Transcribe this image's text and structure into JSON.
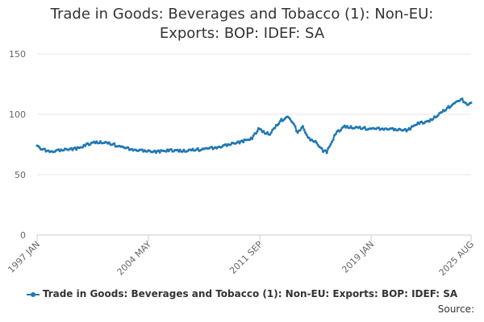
{
  "chart_data": {
    "type": "line",
    "title_lines": [
      "Trade in Goods: Beverages and Tobacco (1): Non-EU:",
      "Exports: BOP: IDEF: SA"
    ],
    "xlabel": "",
    "ylabel": "",
    "ylim": [
      0,
      150
    ],
    "yticks": [
      0,
      50,
      100,
      150
    ],
    "x_ticks": [
      {
        "label": "1997 JAN",
        "index": 0
      },
      {
        "label": "2004 MAY",
        "index": 88
      },
      {
        "label": "2011 SEP",
        "index": 176
      },
      {
        "label": "2019 JAN",
        "index": 264
      },
      {
        "label": "2025 AUG",
        "index": 343
      }
    ],
    "grid": true,
    "legend_position": "bottom",
    "color": "#1f77b4",
    "series": [
      {
        "name": "Trade in Goods: Beverages and Tobacco (1): Non-EU: Exports: BOP: IDEF: SA",
        "x_start": "1997 JAN",
        "x_end": "2025 AUG",
        "frequency": "monthly",
        "anchors": [
          [
            0,
            74
          ],
          [
            3,
            71
          ],
          [
            8,
            70
          ],
          [
            12,
            69
          ],
          [
            18,
            70
          ],
          [
            25,
            71
          ],
          [
            33,
            72
          ],
          [
            40,
            75
          ],
          [
            46,
            77
          ],
          [
            52,
            77
          ],
          [
            60,
            75
          ],
          [
            70,
            72
          ],
          [
            80,
            70
          ],
          [
            92,
            69
          ],
          [
            105,
            70
          ],
          [
            118,
            70
          ],
          [
            130,
            71
          ],
          [
            145,
            73
          ],
          [
            160,
            77
          ],
          [
            170,
            80
          ],
          [
            175,
            88
          ],
          [
            180,
            85
          ],
          [
            184,
            84
          ],
          [
            188,
            89
          ],
          [
            193,
            95
          ],
          [
            198,
            98
          ],
          [
            202,
            93
          ],
          [
            206,
            85
          ],
          [
            210,
            90
          ],
          [
            214,
            80
          ],
          [
            220,
            77
          ],
          [
            226,
            70
          ],
          [
            229,
            69
          ],
          [
            232,
            75
          ],
          [
            236,
            84
          ],
          [
            243,
            90
          ],
          [
            252,
            89
          ],
          [
            262,
            88
          ],
          [
            275,
            88
          ],
          [
            285,
            87
          ],
          [
            293,
            87
          ],
          [
            300,
            92
          ],
          [
            309,
            94
          ],
          [
            316,
            99
          ],
          [
            323,
            104
          ],
          [
            328,
            108
          ],
          [
            333,
            111
          ],
          [
            336,
            112
          ],
          [
            339,
            109
          ],
          [
            341,
            108
          ],
          [
            343,
            110
          ]
        ],
        "jitter": [
          0.0,
          0.6,
          -0.4,
          0.9,
          -0.7,
          0.3,
          -0.9,
          0.5,
          -0.2,
          0.8,
          -0.6,
          0.1,
          0.7,
          -0.8,
          0.4,
          -0.3,
          1.0,
          -0.5,
          0.2,
          -1.0,
          0.6,
          -0.1,
          0.9,
          -0.7,
          0.3,
          -0.4,
          0.8,
          -0.9,
          0.0,
          0.5,
          -0.6,
          1.1,
          -0.3,
          0.2,
          -0.8,
          0.7,
          -0.2,
          0.4,
          -1.1,
          0.6,
          0.1,
          -0.5,
          0.9,
          -0.4,
          0.3,
          -0.7,
          0.8,
          -0.1,
          0.5,
          -0.9,
          0.2,
          0.6,
          -0.3,
          1.0,
          -0.6,
          0.4,
          -0.2,
          0.7,
          -0.8,
          0.3,
          -0.5,
          0.9,
          -0.1,
          0.2,
          -1.0,
          0.5
        ]
      }
    ]
  },
  "source_label": "Source:"
}
